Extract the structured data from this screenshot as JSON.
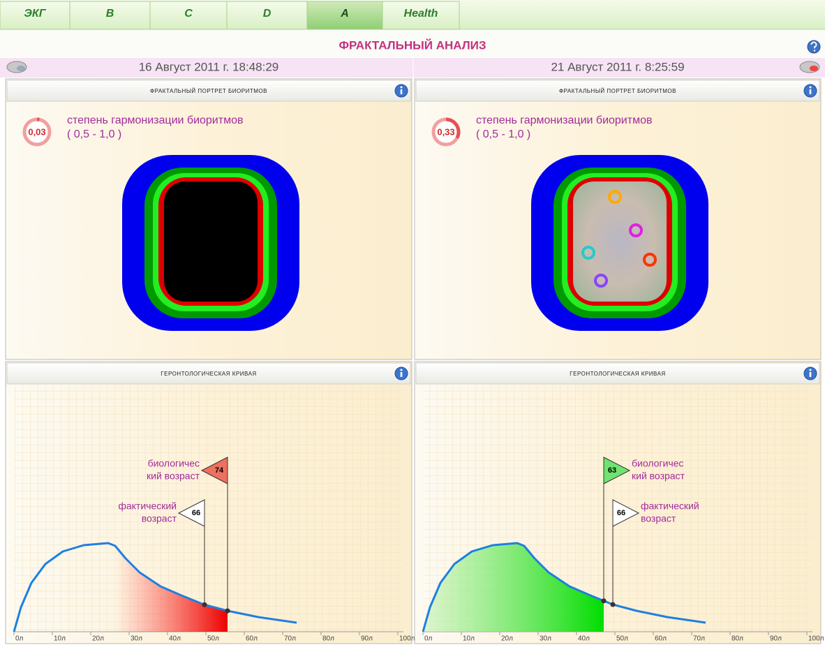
{
  "tabs": [
    "ЭКГ",
    "B",
    "C",
    "D",
    "A",
    "Health"
  ],
  "active_tab": 4,
  "title": "ФРАКТАЛЬНЫЙ АНАЛИЗ",
  "panels": [
    {
      "date": "16 Август 2011 г. 18:48:29",
      "fractal": {
        "title": "ФРАКТАЛЬНЫЙ ПОРТРЕТ БИОРИТМОВ",
        "score": "0,03",
        "label": "степень гармонизации биоритмов",
        "range": "( 0,5 - 1,0 )"
      },
      "curve": {
        "title": "ГЕРОНТОЛОГИЧЕСКАЯ КРИВАЯ",
        "bio_label": [
          "биологичес",
          "кий возраст"
        ],
        "bio_age": 74,
        "actual_label": [
          "фактический",
          "возраст"
        ],
        "actual_age": 66
      }
    },
    {
      "date": "21 Август 2011 г. 8:25:59",
      "fractal": {
        "title": "ФРАКТАЛЬНЫЙ ПОРТРЕТ БИОРИТМОВ",
        "score": "0,33",
        "label": "степень гармонизации биоритмов",
        "range": "( 0,5 - 1,0 )"
      },
      "curve": {
        "title": "ГЕРОНТОЛОГИЧЕСКАЯ КРИВАЯ",
        "bio_label": [
          "биологичес",
          "кий возраст"
        ],
        "bio_age": 63,
        "actual_label": [
          "фактический",
          "возраст"
        ],
        "actual_age": 66
      }
    }
  ],
  "axis_labels": [
    "0л",
    "10л",
    "20л",
    "30л",
    "40л",
    "50л",
    "60л",
    "70л",
    "80л",
    "90л",
    "100л"
  ]
}
